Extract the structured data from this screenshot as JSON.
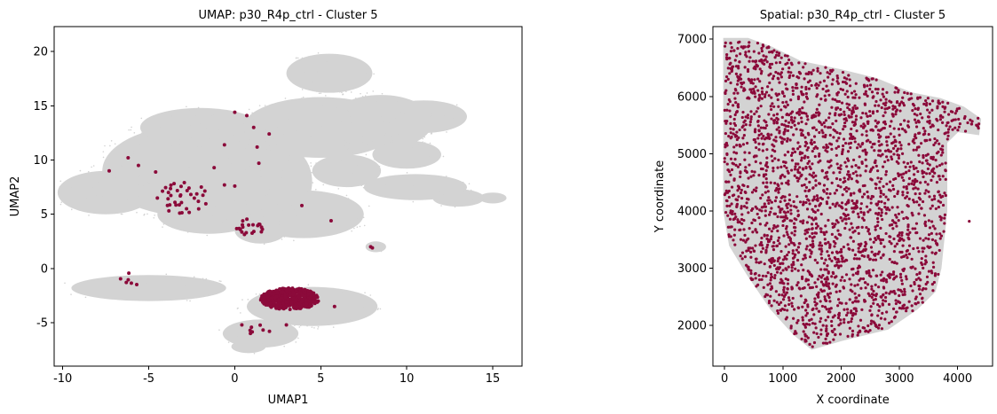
{
  "chart_data": [
    {
      "type": "scatter",
      "title": "UMAP: p30_R4p_ctrl - Cluster 5",
      "xlabel": "UMAP1",
      "ylabel": "UMAP2",
      "xlim": [
        -10.5,
        16.7
      ],
      "ylim": [
        -9.0,
        22.3
      ],
      "xticks": [
        -10,
        -5,
        0,
        5,
        10,
        15
      ],
      "yticks": [
        -5,
        0,
        5,
        10,
        15,
        20
      ],
      "background_color": "#d3d3d3",
      "highlight_color": "#8b0a3a",
      "background_regions": [
        {
          "cx": -2.5,
          "cy": 9.0,
          "rx": 5.2,
          "ry": 4.2
        },
        {
          "cx": -7.5,
          "cy": 7.0,
          "rx": 2.8,
          "ry": 2.0
        },
        {
          "cx": -2.0,
          "cy": 13.0,
          "rx": 3.5,
          "ry": 1.8
        },
        {
          "cx": -1.5,
          "cy": 5.0,
          "rx": 3.0,
          "ry": 1.8
        },
        {
          "cx": 2.5,
          "cy": 8.0,
          "rx": 2.0,
          "ry": 3.5
        },
        {
          "cx": 5.0,
          "cy": 13.0,
          "rx": 4.5,
          "ry": 2.8
        },
        {
          "cx": 8.5,
          "cy": 13.5,
          "rx": 3.0,
          "ry": 2.5
        },
        {
          "cx": 11.0,
          "cy": 14.0,
          "rx": 2.5,
          "ry": 1.5
        },
        {
          "cx": 5.5,
          "cy": 18.0,
          "rx": 2.5,
          "ry": 1.8
        },
        {
          "cx": 10.0,
          "cy": 10.5,
          "rx": 2.0,
          "ry": 1.3
        },
        {
          "cx": 6.5,
          "cy": 9.0,
          "rx": 2.0,
          "ry": 1.5
        },
        {
          "cx": 10.5,
          "cy": 7.5,
          "rx": 3.0,
          "ry": 1.2
        },
        {
          "cx": 13.0,
          "cy": 6.5,
          "rx": 1.5,
          "ry": 0.8
        },
        {
          "cx": 4.0,
          "cy": 5.0,
          "rx": 3.5,
          "ry": 2.2
        },
        {
          "cx": 1.5,
          "cy": 3.5,
          "rx": 1.5,
          "ry": 1.2
        },
        {
          "cx": 15.0,
          "cy": 6.5,
          "rx": 0.8,
          "ry": 0.5
        },
        {
          "cx": 8.2,
          "cy": 2.0,
          "rx": 0.6,
          "ry": 0.5
        },
        {
          "cx": -5.0,
          "cy": -1.8,
          "rx": 4.5,
          "ry": 1.2
        },
        {
          "cx": 4.5,
          "cy": -3.5,
          "rx": 3.8,
          "ry": 1.8
        },
        {
          "cx": 1.5,
          "cy": -6.0,
          "rx": 2.2,
          "ry": 1.3
        },
        {
          "cx": 0.8,
          "cy": -7.2,
          "rx": 1.0,
          "ry": 0.6
        }
      ],
      "highlight_clusters": [
        {
          "cx": 3.2,
          "cy": -2.8,
          "rx": 1.7,
          "ry": 1.0,
          "n": 500
        },
        {
          "cx": -3.0,
          "cy": 6.5,
          "rx": 1.5,
          "ry": 1.5,
          "n": 35
        },
        {
          "cx": 0.9,
          "cy": 3.8,
          "rx": 0.8,
          "ry": 0.8,
          "n": 20
        },
        {
          "cx": 1.0,
          "cy": -5.6,
          "rx": 1.2,
          "ry": 0.5,
          "n": 8
        },
        {
          "cx": -6.0,
          "cy": -1.0,
          "rx": 1.2,
          "ry": 0.6,
          "n": 6
        }
      ],
      "highlight_points": [
        {
          "x": -7.3,
          "y": 9.0
        },
        {
          "x": -5.6,
          "y": 9.5
        },
        {
          "x": -6.2,
          "y": 10.2
        },
        {
          "x": 0.0,
          "y": 14.4
        },
        {
          "x": 0.7,
          "y": 14.1
        },
        {
          "x": 2.0,
          "y": 12.4
        },
        {
          "x": 1.1,
          "y": 13.0
        },
        {
          "x": 1.4,
          "y": 9.7
        },
        {
          "x": 1.3,
          "y": 11.2
        },
        {
          "x": -0.6,
          "y": 11.4
        },
        {
          "x": -1.2,
          "y": 9.3
        },
        {
          "x": 0.0,
          "y": 7.6
        },
        {
          "x": -0.6,
          "y": 7.7
        },
        {
          "x": -4.6,
          "y": 8.9
        },
        {
          "x": 3.9,
          "y": 5.8
        },
        {
          "x": 5.6,
          "y": 4.4
        },
        {
          "x": 7.9,
          "y": 2.0
        },
        {
          "x": 8.0,
          "y": 1.9
        },
        {
          "x": -4.5,
          "y": 6.5
        },
        {
          "x": 3.0,
          "y": -5.2
        },
        {
          "x": 5.8,
          "y": -3.5
        }
      ]
    },
    {
      "type": "scatter",
      "title": "Spatial: p30_R4p_ctrl - Cluster 5",
      "xlabel": "X coordinate",
      "ylabel": "Y coordinate",
      "xlim": [
        -200,
        4600
      ],
      "ylim": [
        1290,
        7220
      ],
      "xticks": [
        0,
        1000,
        2000,
        3000,
        4000
      ],
      "yticks": [
        2000,
        3000,
        4000,
        5000,
        6000,
        7000
      ],
      "background_color": "#d3d3d3",
      "highlight_color": "#8b0a3a",
      "tissue_outline": [
        [
          0,
          7000
        ],
        [
          400,
          7000
        ],
        [
          800,
          6850
        ],
        [
          1300,
          6600
        ],
        [
          2000,
          6450
        ],
        [
          2600,
          6300
        ],
        [
          3200,
          6050
        ],
        [
          3700,
          5950
        ],
        [
          4100,
          5800
        ],
        [
          4380,
          5600
        ],
        [
          4350,
          5350
        ],
        [
          4000,
          5400
        ],
        [
          3800,
          5200
        ],
        [
          3800,
          4000
        ],
        [
          3700,
          3000
        ],
        [
          3600,
          2600
        ],
        [
          3300,
          2300
        ],
        [
          2800,
          1950
        ],
        [
          2000,
          1750
        ],
        [
          1500,
          1600
        ],
        [
          1200,
          1850
        ],
        [
          800,
          2300
        ],
        [
          400,
          2900
        ],
        [
          100,
          3400
        ],
        [
          0,
          4000
        ]
      ],
      "highlight_count": 2600,
      "outlier_points": [
        {
          "x": 4200,
          "y": 3820
        }
      ]
    }
  ]
}
